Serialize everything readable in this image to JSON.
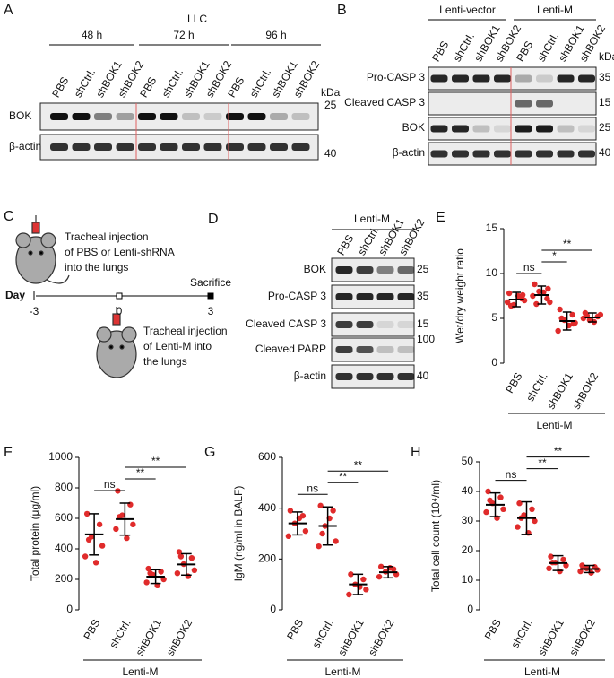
{
  "panel_labels": [
    "A",
    "B",
    "C",
    "D",
    "E",
    "F",
    "G",
    "H"
  ],
  "panel_a": {
    "title": "LLC",
    "groups": [
      "48 h",
      "72 h",
      "96 h"
    ],
    "lanes": [
      "PBS",
      "shCtrl.",
      "shBOK1",
      "shBOK2"
    ],
    "unit": "kDa",
    "rows": [
      {
        "label": "BOK",
        "marker": "25"
      },
      {
        "label": "β-actin",
        "marker": "40"
      }
    ]
  },
  "panel_b": {
    "groups": [
      "Lenti-vector",
      "Lenti-M"
    ],
    "lanes": [
      "PBS",
      "shCtrl.",
      "shBOK1",
      "shBOK2"
    ],
    "unit": "kDa",
    "rows": [
      {
        "label": "Pro-CASP 3",
        "marker": "35"
      },
      {
        "label": "Cleaved CASP 3",
        "marker": "15"
      },
      {
        "label": "BOK",
        "marker": "25"
      },
      {
        "label": "β-actin",
        "marker": "40"
      }
    ]
  },
  "panel_c": {
    "step1": [
      "Tracheal injection",
      "of PBS or Lenti-shRNA",
      "into the lungs"
    ],
    "axis_label": "Day",
    "days": [
      "-3",
      "0",
      "3"
    ],
    "endpoint": "Sacrifice",
    "step2": [
      "Tracheal injection",
      "of Lenti-M into",
      "the lungs"
    ]
  },
  "panel_d": {
    "group": "Lenti-M",
    "lanes": [
      "PBS",
      "shCtrl.",
      "shBOK1",
      "shBOK2"
    ],
    "rows": [
      {
        "label": "BOK",
        "marker": "25"
      },
      {
        "label": "Pro-CASP 3",
        "marker": "35"
      },
      {
        "label": "Cleaved CASP 3",
        "marker": "15"
      },
      {
        "label": "Cleaved PARP",
        "marker": "100"
      },
      {
        "label": "β-actin",
        "marker": "40"
      }
    ]
  },
  "chart_data": [
    {
      "type": "dotplot",
      "ylabel": "Wet/dry weight ratio",
      "categories": [
        "PBS",
        "shCtrl.",
        "shBOK1",
        "shBOK2"
      ],
      "group_label": "Lenti-M",
      "color": "#e02b2b",
      "points": [
        [
          7.8,
          7.2,
          6.5,
          7.0,
          6.8,
          7.5,
          6.4,
          7.6
        ],
        [
          8.8,
          7.2,
          8.0,
          6.8,
          7.5,
          7.9,
          6.6,
          8.3
        ],
        [
          6.0,
          5.4,
          4.8,
          4.5,
          3.6,
          4.2,
          5.0,
          4.4
        ],
        [
          5.6,
          5.2,
          4.8,
          5.4,
          5.0,
          4.6,
          5.3
        ]
      ],
      "means": [
        7.1,
        7.6,
        4.7,
        5.1
      ],
      "sd": [
        0.8,
        1.0,
        1.0,
        0.5
      ],
      "ylim": [
        0,
        15
      ],
      "yticks": [
        0,
        5,
        10,
        15
      ],
      "comparisons": [
        {
          "between": [
            0,
            1
          ],
          "label": "ns"
        },
        {
          "between": [
            1,
            2
          ],
          "label": "*"
        },
        {
          "between": [
            1,
            3
          ],
          "label": "**"
        }
      ]
    },
    {
      "type": "dotplot",
      "ylabel": "Total protein (μg/ml)",
      "categories": [
        "PBS",
        "shCtrl.",
        "shBOK1",
        "shBOK2"
      ],
      "group_label": "Lenti-M",
      "color": "#e02b2b",
      "points": [
        [
          630,
          560,
          480,
          420,
          350,
          310,
          460
        ],
        [
          780,
          690,
          620,
          560,
          530,
          470,
          610
        ],
        [
          270,
          250,
          230,
          200,
          180,
          160,
          240
        ],
        [
          380,
          340,
          300,
          260,
          240,
          220,
          350
        ]
      ],
      "means": [
        495,
        595,
        218,
        298
      ],
      "sd": [
        135,
        105,
        45,
        70
      ],
      "ylim": [
        0,
        1000
      ],
      "yticks": [
        0,
        200,
        400,
        600,
        800,
        1000
      ],
      "comparisons": [
        {
          "between": [
            0,
            1
          ],
          "label": "ns"
        },
        {
          "between": [
            1,
            2
          ],
          "label": "**"
        },
        {
          "between": [
            1,
            3
          ],
          "label": "**"
        }
      ]
    },
    {
      "type": "dotplot",
      "ylabel": "IgM (ng/ml in BALF)",
      "categories": [
        "PBS",
        "shCtrl.",
        "shBOK1",
        "shBOK2"
      ],
      "group_label": "Lenti-M",
      "color": "#e02b2b",
      "points": [
        [
          390,
          370,
          340,
          310,
          290,
          360
        ],
        [
          410,
          390,
          330,
          270,
          250,
          360,
          300
        ],
        [
          140,
          120,
          100,
          80,
          60,
          90
        ],
        [
          170,
          160,
          150,
          140,
          130,
          165
        ]
      ],
      "means": [
        340,
        330,
        100,
        148
      ],
      "sd": [
        45,
        75,
        40,
        22
      ],
      "ylim": [
        0,
        600
      ],
      "yticks": [
        0,
        200,
        400,
        600
      ],
      "comparisons": [
        {
          "between": [
            0,
            1
          ],
          "label": "ns"
        },
        {
          "between": [
            1,
            2
          ],
          "label": "**"
        },
        {
          "between": [
            1,
            3
          ],
          "label": "**"
        }
      ]
    },
    {
      "type": "dotplot",
      "ylabel": "Total cell count (10⁴/ml)",
      "categories": [
        "PBS",
        "shCtrl.",
        "shBOK1",
        "shBOK2"
      ],
      "group_label": "Lenti-M",
      "color": "#e02b2b",
      "points": [
        [
          40,
          38,
          36,
          34,
          33,
          31,
          37
        ],
        [
          36,
          34,
          32,
          30,
          28,
          26,
          31
        ],
        [
          18,
          17,
          16,
          15,
          14,
          13,
          16
        ],
        [
          15,
          14.5,
          14,
          13.5,
          13,
          12.5
        ]
      ],
      "means": [
        35.5,
        31,
        15.8,
        13.8
      ],
      "sd": [
        4,
        5.5,
        2.5,
        1.2
      ],
      "ylim": [
        0,
        50
      ],
      "yticks": [
        0,
        10,
        20,
        30,
        40,
        50
      ],
      "comparisons": [
        {
          "between": [
            0,
            1
          ],
          "label": "ns"
        },
        {
          "between": [
            1,
            2
          ],
          "label": "**"
        },
        {
          "between": [
            1,
            3
          ],
          "label": "**"
        }
      ]
    }
  ]
}
